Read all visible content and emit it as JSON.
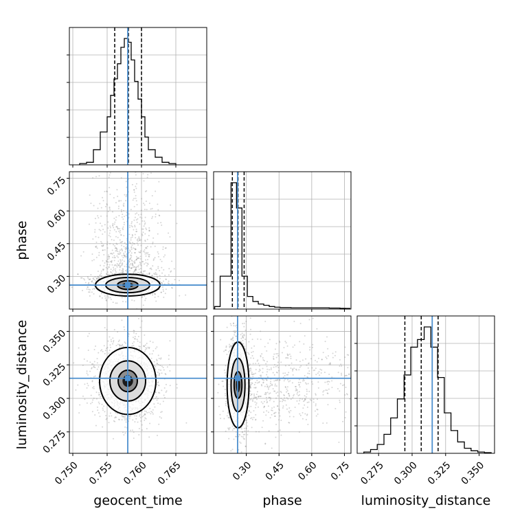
{
  "chart_data": {
    "type": "corner",
    "parameters": [
      "geocent_time",
      "phase",
      "luminosity_distance"
    ],
    "truths": {
      "geocent_time": 0.758,
      "phase": 0.26,
      "luminosity_distance": 0.315
    },
    "grid": true,
    "colors": {
      "truth": "#4c8fce",
      "histogram": "#000000",
      "samples": "#888888",
      "contour_fill": "#000000"
    },
    "axes": {
      "geocent_time": {
        "label": "geocent_time",
        "range": [
          0.7495,
          0.7695
        ],
        "ticks": [
          0.75,
          0.755,
          0.76,
          0.765
        ],
        "tick_labels": [
          "0.750",
          "0.755",
          "0.760",
          "0.765"
        ]
      },
      "phase": {
        "label": "phase",
        "range": [
          0.15,
          0.78
        ],
        "ticks": [
          0.3,
          0.45,
          0.6,
          0.75
        ],
        "tick_labels": [
          "0.30",
          "0.45",
          "0.60",
          "0.75"
        ]
      },
      "luminosity_distance": {
        "label": "luminosity_distance",
        "range": [
          0.259,
          0.3615
        ],
        "ticks": [
          0.275,
          0.3,
          0.325,
          0.35
        ],
        "tick_labels": [
          "0.275",
          "0.300",
          "0.325",
          "0.350"
        ]
      }
    },
    "marginals": {
      "geocent_time": {
        "quantiles": [
          0.7561,
          0.7581,
          0.76
        ],
        "bin_edges": [
          0.751,
          0.752,
          0.753,
          0.754,
          0.755,
          0.7555,
          0.756,
          0.7565,
          0.757,
          0.7575,
          0.758,
          0.7585,
          0.759,
          0.7595,
          0.76,
          0.7605,
          0.761,
          0.762,
          0.763,
          0.764,
          0.765
        ],
        "counts": [
          0.01,
          0.02,
          0.12,
          0.26,
          0.38,
          0.55,
          0.68,
          0.8,
          0.93,
          1.0,
          0.97,
          0.83,
          0.66,
          0.52,
          0.38,
          0.22,
          0.12,
          0.06,
          0.02,
          0.01
        ]
      },
      "phase": {
        "quantiles": [
          0.236,
          0.262,
          0.29
        ],
        "bin_edges": [
          0.155,
          0.18,
          0.205,
          0.23,
          0.255,
          0.28,
          0.305,
          0.33,
          0.355,
          0.38,
          0.405,
          0.43,
          0.455,
          0.48,
          0.505,
          0.53,
          0.555,
          0.58,
          0.605,
          0.63,
          0.655,
          0.68,
          0.705,
          0.73,
          0.755,
          0.775
        ],
        "counts": [
          0.02,
          0.26,
          0.26,
          1.0,
          0.8,
          0.26,
          0.1,
          0.06,
          0.04,
          0.03,
          0.02,
          0.015,
          0.012,
          0.012,
          0.01,
          0.01,
          0.01,
          0.01,
          0.01,
          0.01,
          0.01,
          0.008,
          0.008,
          0.006,
          0.005
        ]
      },
      "luminosity_distance": {
        "quantiles": [
          0.2946,
          0.3068,
          0.3194
        ],
        "bin_edges": [
          0.264,
          0.269,
          0.274,
          0.279,
          0.284,
          0.289,
          0.294,
          0.299,
          0.304,
          0.309,
          0.314,
          0.319,
          0.324,
          0.329,
          0.334,
          0.339,
          0.344,
          0.349,
          0.354,
          0.359
        ],
        "counts": [
          0.01,
          0.03,
          0.07,
          0.15,
          0.28,
          0.43,
          0.62,
          0.84,
          0.9,
          1.0,
          0.84,
          0.6,
          0.32,
          0.18,
          0.09,
          0.04,
          0.02,
          0.01,
          0.005
        ]
      }
    },
    "joints": [
      {
        "x": "geocent_time",
        "y": "phase",
        "center": [
          0.758,
          0.26
        ],
        "contours": [
          [
            0.0015,
            0.02
          ],
          [
            0.0032,
            0.035
          ],
          [
            0.0047,
            0.05
          ]
        ]
      },
      {
        "x": "geocent_time",
        "y": "luminosity_distance",
        "center": [
          0.758,
          0.313
        ],
        "contours": [
          [
            0.0014,
            0.008
          ],
          [
            0.0026,
            0.015
          ],
          [
            0.0041,
            0.025
          ]
        ]
      },
      {
        "x": "phase",
        "y": "luminosity_distance",
        "center": [
          0.262,
          0.31
        ],
        "contours": [
          [
            0.018,
            0.01
          ],
          [
            0.032,
            0.02
          ],
          [
            0.05,
            0.032
          ]
        ]
      }
    ]
  }
}
